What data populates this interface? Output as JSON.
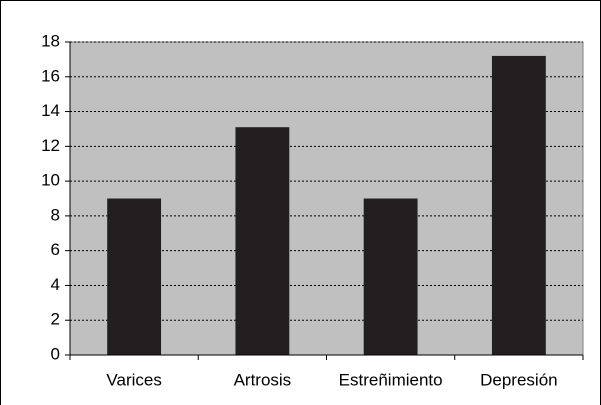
{
  "chart_data": {
    "type": "bar",
    "categories": [
      "Varices",
      "Artrosis",
      "Estreñimiento",
      "Depresión"
    ],
    "values": [
      9,
      13.1,
      9,
      17.2
    ],
    "color": "#231f20",
    "background": "#c0c0c0",
    "ylim": [
      0,
      18
    ],
    "yticks": [
      0,
      2,
      4,
      6,
      8,
      10,
      12,
      14,
      16,
      18
    ],
    "grid": true
  }
}
